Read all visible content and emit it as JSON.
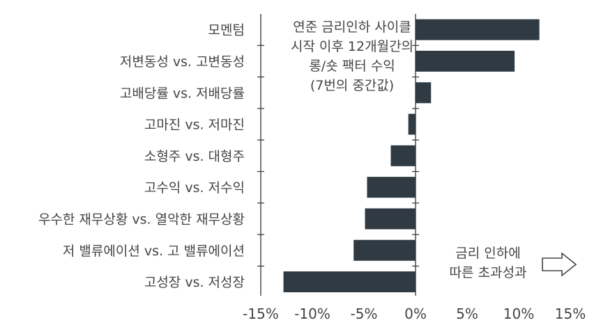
{
  "chart_data": {
    "type": "bar",
    "orientation": "horizontal",
    "categories": [
      "모멘텀",
      "저변동성 vs. 고변동성",
      "고배당률 vs. 저배당률",
      "고마진 vs. 저마진",
      "소형주 vs. 대형주",
      "고수익 vs. 저수익",
      "우수한 재무상황 vs. 열악한 재무상황",
      "저 밸류에이션 vs. 고 밸류에이션",
      "고성장 vs. 저성장"
    ],
    "values": [
      12,
      9.6,
      1.5,
      -0.7,
      -2.4,
      -4.7,
      -4.9,
      -6.0,
      -12.8
    ],
    "xlim": [
      -15,
      15
    ],
    "xticks": [
      "-15%",
      "-10%",
      "-5%",
      "0%",
      "5%",
      "10%",
      "15%"
    ],
    "xtick_values": [
      -15,
      -10,
      -5,
      0,
      5,
      10,
      15
    ],
    "bar_color": "#2f3a42",
    "annotation_top": [
      "연준 금리인하 사이클",
      "시작 이후 12개월간의",
      "롱/숏 팩터 수익",
      "(7번의 중간값)"
    ],
    "annotation_bottom": [
      "금리 인하에",
      "따른 초과성과"
    ],
    "arrow_icon": "right-arrow-outline-icon"
  }
}
